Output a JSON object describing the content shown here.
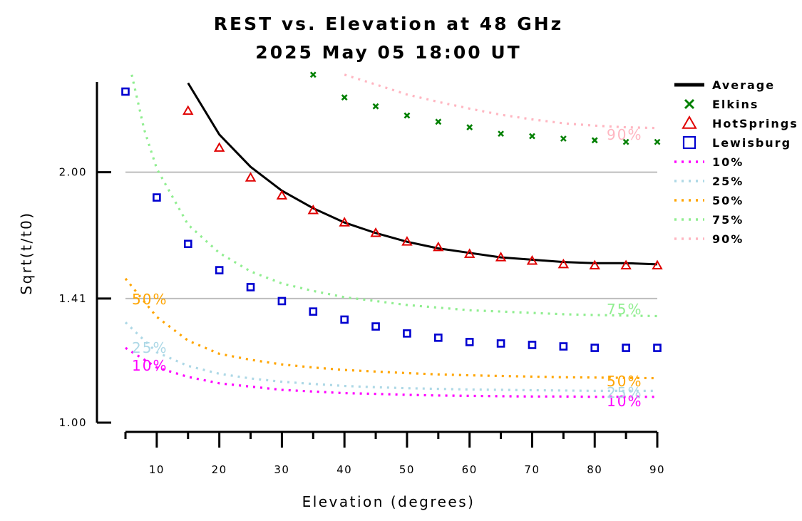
{
  "title": {
    "line1": "REST vs. Elevation at 48 GHz",
    "line2": "2025 May 05 18:00 UT"
  },
  "chart_data": {
    "type": "scatter",
    "title": "REST vs. Elevation at 48 GHz",
    "subtitle": "2025 May 05 18:00 UT",
    "xlabel": "Elevation (degrees)",
    "ylabel": "Sqrt(t/t0)",
    "xlim": [
      5,
      90
    ],
    "ylim": [
      1.0,
      2.65
    ],
    "x_ticks": [
      "10",
      "20",
      "30",
      "40",
      "50",
      "60",
      "70",
      "80",
      "90"
    ],
    "y_ticks": [
      "1.00",
      "1.41",
      "2.00"
    ],
    "reference_lines": [
      1.41,
      2.0
    ],
    "legend_position": "right",
    "series": [
      {
        "name": "Average",
        "kind": "line",
        "color": "#000000",
        "x": [
          15,
          20,
          25,
          30,
          35,
          40,
          45,
          50,
          55,
          60,
          65,
          70,
          75,
          80,
          85,
          90
        ],
        "y": [
          2.56,
          2.22,
          2.03,
          1.9,
          1.81,
          1.74,
          1.69,
          1.65,
          1.62,
          1.6,
          1.58,
          1.57,
          1.56,
          1.555,
          1.555,
          1.55
        ]
      },
      {
        "name": "Elkins",
        "kind": "marker",
        "marker": "x",
        "color": "#008000",
        "x": [
          35,
          40,
          45,
          50,
          55,
          60,
          65,
          70,
          75,
          80,
          85,
          90
        ],
        "y": [
          2.62,
          2.46,
          2.4,
          2.34,
          2.3,
          2.265,
          2.225,
          2.21,
          2.195,
          2.185,
          2.175,
          2.175
        ]
      },
      {
        "name": "HotSprings",
        "kind": "marker",
        "marker": "triangle",
        "color": "#e00000",
        "x": [
          15,
          20,
          25,
          30,
          35,
          40,
          45,
          50,
          55,
          60,
          65,
          70,
          75,
          80,
          85,
          90
        ],
        "y": [
          2.37,
          2.14,
          1.97,
          1.875,
          1.8,
          1.74,
          1.69,
          1.65,
          1.625,
          1.595,
          1.58,
          1.565,
          1.55,
          1.545,
          1.545,
          1.545
        ]
      },
      {
        "name": "Lewisburg",
        "kind": "marker",
        "marker": "square",
        "color": "#0000d0",
        "x": [
          5,
          10,
          15,
          20,
          25,
          30,
          35,
          40,
          45,
          50,
          55,
          60,
          65,
          70,
          75,
          80,
          85,
          90
        ],
        "y": [
          2.5,
          1.865,
          1.64,
          1.525,
          1.455,
          1.4,
          1.36,
          1.33,
          1.305,
          1.28,
          1.265,
          1.25,
          1.245,
          1.24,
          1.235,
          1.23,
          1.23,
          1.23
        ]
      },
      {
        "name": "10%",
        "kind": "dotted",
        "color": "#ff00ff",
        "label": "10%",
        "x": [
          5,
          10,
          15,
          20,
          25,
          30,
          35,
          40,
          45,
          50,
          55,
          60,
          65,
          70,
          75,
          80,
          85,
          90
        ],
        "y": [
          1.23,
          1.165,
          1.135,
          1.115,
          1.105,
          1.095,
          1.09,
          1.085,
          1.083,
          1.08,
          1.078,
          1.077,
          1.076,
          1.075,
          1.075,
          1.074,
          1.074,
          1.074
        ]
      },
      {
        "name": "25%",
        "kind": "dotted",
        "color": "#add8e6",
        "label": "25%",
        "x": [
          5,
          10,
          15,
          20,
          25,
          30,
          35,
          40,
          45,
          50,
          55,
          60,
          65,
          70,
          75,
          80,
          85,
          90
        ],
        "y": [
          1.32,
          1.215,
          1.17,
          1.145,
          1.13,
          1.12,
          1.113,
          1.107,
          1.103,
          1.1,
          1.098,
          1.096,
          1.095,
          1.094,
          1.093,
          1.092,
          1.092,
          1.092
        ]
      },
      {
        "name": "50%",
        "kind": "dotted",
        "color": "#ffa500",
        "label": "50%",
        "x": [
          5,
          10,
          15,
          20,
          25,
          30,
          35,
          40,
          45,
          50,
          55,
          60,
          65,
          70,
          75,
          80,
          85,
          90
        ],
        "y": [
          1.49,
          1.34,
          1.255,
          1.21,
          1.19,
          1.175,
          1.165,
          1.157,
          1.152,
          1.147,
          1.143,
          1.14,
          1.138,
          1.136,
          1.134,
          1.133,
          1.132,
          1.131
        ]
      },
      {
        "name": "75%",
        "kind": "dotted",
        "color": "#90ee90",
        "label": "75%",
        "x": [
          6,
          8,
          10,
          15,
          20,
          25,
          30,
          35,
          40,
          45,
          50,
          55,
          60,
          65,
          70,
          75,
          80,
          85,
          90
        ],
        "y": [
          2.62,
          2.25,
          2.02,
          1.73,
          1.6,
          1.52,
          1.47,
          1.44,
          1.415,
          1.4,
          1.385,
          1.375,
          1.365,
          1.36,
          1.355,
          1.35,
          1.347,
          1.345,
          1.343
        ]
      },
      {
        "name": "90%",
        "kind": "dotted",
        "color": "#ffb6c1",
        "label": "90%",
        "x": [
          40,
          45,
          50,
          55,
          60,
          65,
          70,
          75,
          80,
          85,
          90
        ],
        "y": [
          2.62,
          2.55,
          2.48,
          2.43,
          2.385,
          2.345,
          2.315,
          2.29,
          2.275,
          2.265,
          2.26
        ]
      }
    ]
  }
}
